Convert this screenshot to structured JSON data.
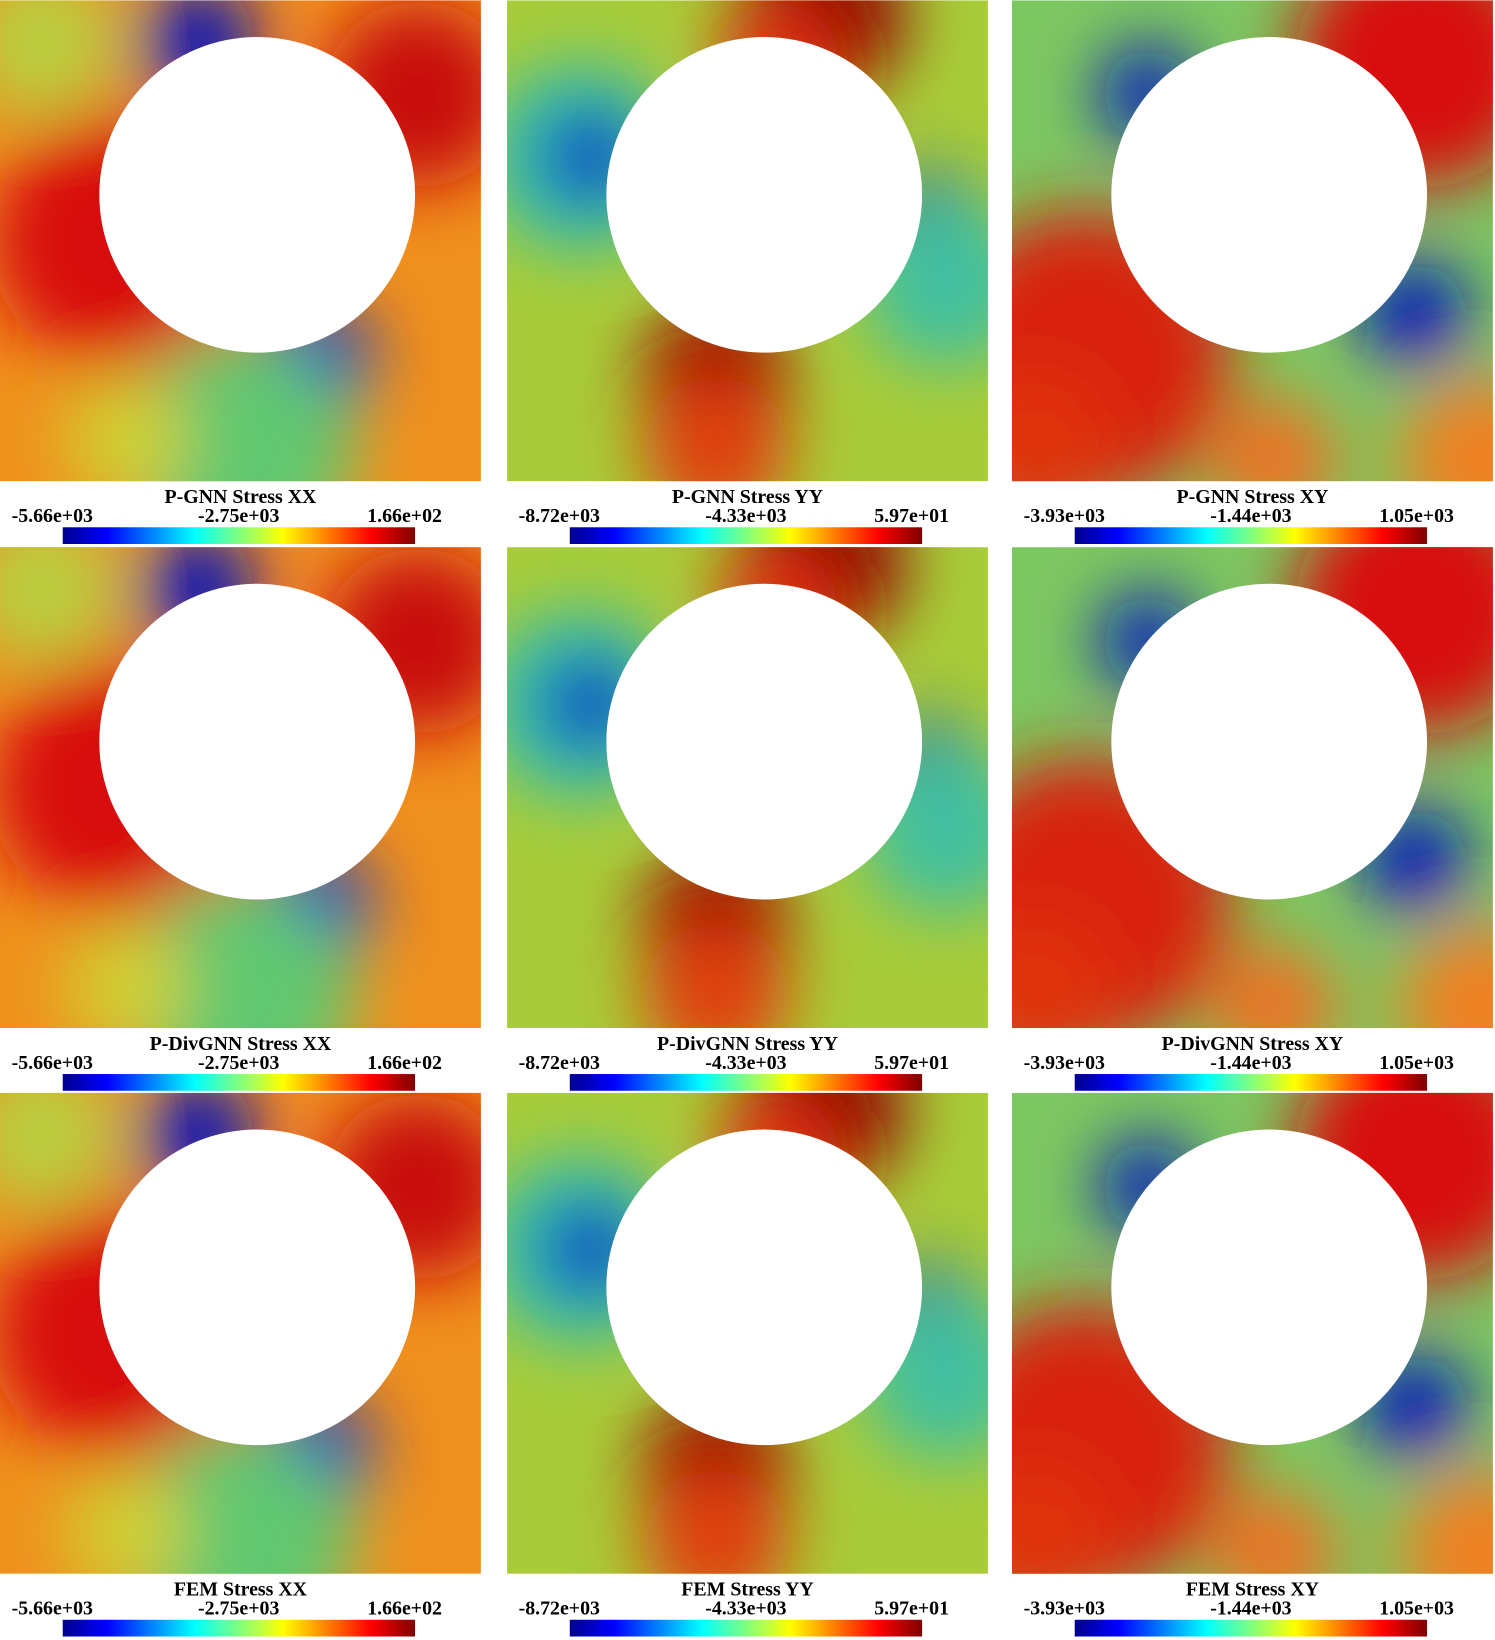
{
  "chart_data": [
    {
      "type": "contour",
      "title": "P-GNN Stress XX",
      "colormap": "jet",
      "clim": [
        -5660,
        166
      ],
      "ticks": [
        {
          "value": -5660,
          "label": "-5.66e+03"
        },
        {
          "value": -2750,
          "label": "-2.75e+03"
        },
        {
          "value": 166,
          "label": "1.66e+02"
        }
      ]
    },
    {
      "type": "contour",
      "title": "P-GNN Stress YY",
      "colormap": "jet",
      "clim": [
        -8720,
        59.7
      ],
      "ticks": [
        {
          "value": -8720,
          "label": "-8.72e+03"
        },
        {
          "value": -4330,
          "label": "-4.33e+03"
        },
        {
          "value": 59.7,
          "label": "5.97e+01"
        }
      ]
    },
    {
      "type": "contour",
      "title": "P-GNN Stress XY",
      "colormap": "jet",
      "clim": [
        -3930,
        1050
      ],
      "ticks": [
        {
          "value": -3930,
          "label": "-3.93e+03"
        },
        {
          "value": -1440,
          "label": "-1.44e+03"
        },
        {
          "value": 1050,
          "label": "1.05e+03"
        }
      ]
    },
    {
      "type": "contour",
      "title": "P-DivGNN Stress XX",
      "colormap": "jet",
      "clim": [
        -5660,
        166
      ],
      "ticks": [
        {
          "value": -5660,
          "label": "-5.66e+03"
        },
        {
          "value": -2750,
          "label": "-2.75e+03"
        },
        {
          "value": 166,
          "label": "1.66e+02"
        }
      ]
    },
    {
      "type": "contour",
      "title": "P-DivGNN Stress YY",
      "colormap": "jet",
      "clim": [
        -8720,
        59.7
      ],
      "ticks": [
        {
          "value": -8720,
          "label": "-8.72e+03"
        },
        {
          "value": -4330,
          "label": "-4.33e+03"
        },
        {
          "value": 59.7,
          "label": "5.97e+01"
        }
      ]
    },
    {
      "type": "contour",
      "title": "P-DivGNN Stress XY",
      "colormap": "jet",
      "clim": [
        -3930,
        1050
      ],
      "ticks": [
        {
          "value": -3930,
          "label": "-3.93e+03"
        },
        {
          "value": -1440,
          "label": "-1.44e+03"
        },
        {
          "value": 1050,
          "label": "1.05e+03"
        }
      ]
    },
    {
      "type": "contour",
      "title": "FEM Stress XX",
      "colormap": "jet",
      "clim": [
        -5660,
        166
      ],
      "ticks": [
        {
          "value": -5660,
          "label": "-5.66e+03"
        },
        {
          "value": -2750,
          "label": "-2.75e+03"
        },
        {
          "value": 166,
          "label": "1.66e+02"
        }
      ]
    },
    {
      "type": "contour",
      "title": "FEM Stress YY",
      "colormap": "jet",
      "clim": [
        -8720,
        59.7
      ],
      "ticks": [
        {
          "value": -8720,
          "label": "-8.72e+03"
        },
        {
          "value": -4330,
          "label": "-4.33e+03"
        },
        {
          "value": 59.7,
          "label": "5.97e+01"
        }
      ]
    },
    {
      "type": "contour",
      "title": "FEM Stress XY",
      "colormap": "jet",
      "clim": [
        -3930,
        1050
      ],
      "ticks": [
        {
          "value": -3930,
          "label": "-3.93e+03"
        },
        {
          "value": -1440,
          "label": "-1.44e+03"
        },
        {
          "value": 1050,
          "label": "1.05e+03"
        }
      ]
    }
  ]
}
